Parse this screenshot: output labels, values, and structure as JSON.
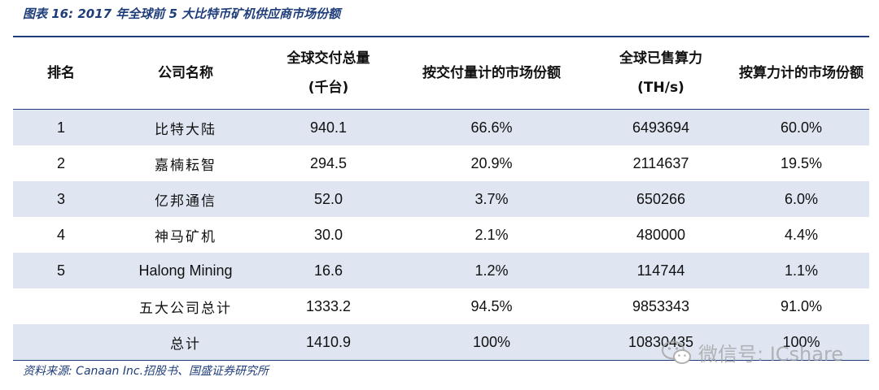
{
  "caption": "图表 16:  2017 年全球前 5 大比特币矿机供应商市场份额",
  "table": {
    "headers": [
      {
        "line1": "排名",
        "line2": ""
      },
      {
        "line1": "公司名称",
        "line2": ""
      },
      {
        "line1": "全球交付总量",
        "line2": "(千台)"
      },
      {
        "line1": "按交付量计的市场份额",
        "line2": ""
      },
      {
        "line1": "全球已售算力",
        "line2": "(TH/s)"
      },
      {
        "line1": "按算力计的市场份额",
        "line2": ""
      }
    ],
    "rows": [
      {
        "rank": "1",
        "company": "比特大陆",
        "delivery": "940.1",
        "delivery_share": "66.6%",
        "hashrate": "6493694",
        "hashrate_share": "60.0%"
      },
      {
        "rank": "2",
        "company": "嘉楠耘智",
        "delivery": "294.5",
        "delivery_share": "20.9%",
        "hashrate": "2114637",
        "hashrate_share": "19.5%"
      },
      {
        "rank": "3",
        "company": "亿邦通信",
        "delivery": "52.0",
        "delivery_share": "3.7%",
        "hashrate": "650266",
        "hashrate_share": "6.0%"
      },
      {
        "rank": "4",
        "company": "神马矿机",
        "delivery": "30.0",
        "delivery_share": "2.1%",
        "hashrate": "480000",
        "hashrate_share": "4.4%"
      },
      {
        "rank": "5",
        "company": "Halong Mining",
        "delivery": "16.6",
        "delivery_share": "1.2%",
        "hashrate": "114744",
        "hashrate_share": "1.1%"
      },
      {
        "rank": "",
        "company": "五大公司总计",
        "delivery": "1333.2",
        "delivery_share": "94.5%",
        "hashrate": "9853343",
        "hashrate_share": "91.0%"
      },
      {
        "rank": "",
        "company": "总计",
        "delivery": "1410.9",
        "delivery_share": "100%",
        "hashrate": "10830435",
        "hashrate_share": "100%"
      }
    ]
  },
  "source": "资料来源: Canaan Inc.招股书、国盛证券研究所",
  "watermark": {
    "text": "微信号: ICshare",
    "icon": "wechat-icon"
  }
}
